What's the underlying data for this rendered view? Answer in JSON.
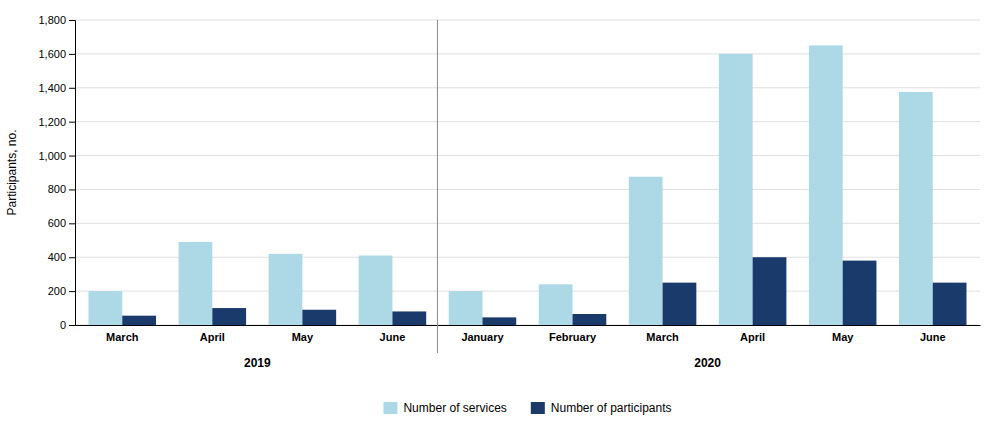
{
  "chart_data": {
    "type": "bar",
    "y_label": "Participants, no.",
    "categories": [
      "March",
      "April",
      "May",
      "June",
      "January",
      "February",
      "March",
      "April",
      "May",
      "June"
    ],
    "groups": [
      {
        "label": "2019",
        "categories": [
          "March",
          "April",
          "May",
          "June"
        ]
      },
      {
        "label": "2020",
        "categories": [
          "January",
          "February",
          "March",
          "April",
          "May",
          "June"
        ]
      }
    ],
    "series": [
      {
        "name": "Number of services",
        "color": "#add8e6",
        "values": [
          200,
          490,
          420,
          410,
          200,
          240,
          875,
          1600,
          1650,
          1375
        ]
      },
      {
        "name": "Number of participants",
        "color": "#1a3a6b",
        "values": [
          55,
          100,
          90,
          80,
          45,
          65,
          250,
          400,
          380,
          250
        ]
      }
    ],
    "ylim": [
      0,
      1800
    ],
    "yticks": [
      0,
      200,
      400,
      600,
      800,
      {
        "value": 1000,
        "label": "1,000"
      },
      {
        "value": 1200,
        "label": "1,200"
      },
      {
        "value": 1400,
        "label": "1,400"
      },
      {
        "value": 1600,
        "label": "1,600"
      },
      {
        "value": 1800,
        "label": "1,800"
      }
    ],
    "grid": true,
    "legend": "bottom"
  }
}
